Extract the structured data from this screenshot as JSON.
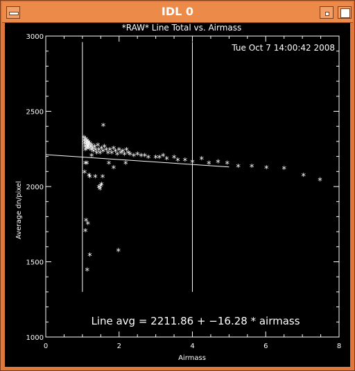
{
  "window": {
    "title": "IDL 0"
  },
  "colors": {
    "titlebar": "#ec8a4a",
    "plot_background": "#000000",
    "plot_foreground": "#ffffff"
  },
  "icons": {
    "menu": "window-menu-icon",
    "minimize": "minimize-icon",
    "maximize": "maximize-icon"
  },
  "plot": {
    "timestamp": "Tue Oct  7 14:00:42 2008",
    "fit_text": "Line avg = 2211.86 + −16.28 * airmass",
    "markers": {
      "vlines_x": [
        1.0,
        4.0
      ]
    },
    "fit": {
      "intercept": 2211.86,
      "slope": -16.28,
      "x_range": [
        0,
        5
      ]
    }
  },
  "chart_data": {
    "type": "scatter",
    "title": "*RAW* Line Total vs. Airmass",
    "xlabel": "Airmass",
    "ylabel": "Average dn/pixel",
    "xlim": [
      0,
      8
    ],
    "ylim": [
      1000,
      3000
    ],
    "x_ticks": [
      "0",
      "2",
      "4",
      "6",
      "8"
    ],
    "y_ticks": [
      "1000",
      "1500",
      "2000",
      "2500",
      "3000"
    ],
    "grid": false,
    "x": [
      1.04,
      1.05,
      1.06,
      1.07,
      1.08,
      1.09,
      1.1,
      1.11,
      1.12,
      1.13,
      1.14,
      1.15,
      1.16,
      1.17,
      1.18,
      1.2,
      1.22,
      1.24,
      1.26,
      1.28,
      1.3,
      1.33,
      1.36,
      1.39,
      1.42,
      1.45,
      1.48,
      1.52,
      1.56,
      1.6,
      1.65,
      1.7,
      1.75,
      1.8,
      1.85,
      1.9,
      1.95,
      2.0,
      2.05,
      2.1,
      2.15,
      2.2,
      2.25,
      2.3,
      2.4,
      2.5,
      2.6,
      2.7,
      2.8,
      3.0,
      3.1,
      3.2,
      3.3,
      3.5,
      3.6,
      3.8,
      4.0,
      4.25,
      4.45,
      4.7,
      4.95,
      5.25,
      5.62,
      6.02,
      6.5,
      7.03,
      7.48,
      1.06,
      1.08,
      1.12,
      1.18,
      1.2,
      1.25,
      1.35,
      1.45,
      1.48,
      1.5,
      1.52,
      1.55,
      1.72,
      1.85,
      2.18,
      1.08,
      1.1,
      1.15,
      1.2,
      1.13,
      1.98,
      1.57
    ],
    "y": [
      2320,
      2300,
      2280,
      2260,
      2240,
      2310,
      2290,
      2270,
      2250,
      2300,
      2280,
      2260,
      2290,
      2270,
      2250,
      2280,
      2260,
      2240,
      2270,
      2250,
      2230,
      2260,
      2240,
      2220,
      2270,
      2240,
      2220,
      2250,
      2230,
      2260,
      2240,
      2220,
      2240,
      2220,
      2250,
      2230,
      2210,
      2240,
      2220,
      2230,
      2210,
      2240,
      2220,
      2210,
      2200,
      2210,
      2200,
      2200,
      2190,
      2190,
      2190,
      2200,
      2180,
      2190,
      2170,
      2170,
      2160,
      2180,
      2150,
      2160,
      2150,
      2130,
      2130,
      2120,
      2115,
      2070,
      2040,
      2090,
      2150,
      2150,
      2070,
      2060,
      2200,
      2060,
      1990,
      1980,
      2000,
      2010,
      2060,
      2150,
      2120,
      2150,
      1700,
      1770,
      1750,
      1540,
      1440,
      1570,
      2400
    ]
  }
}
